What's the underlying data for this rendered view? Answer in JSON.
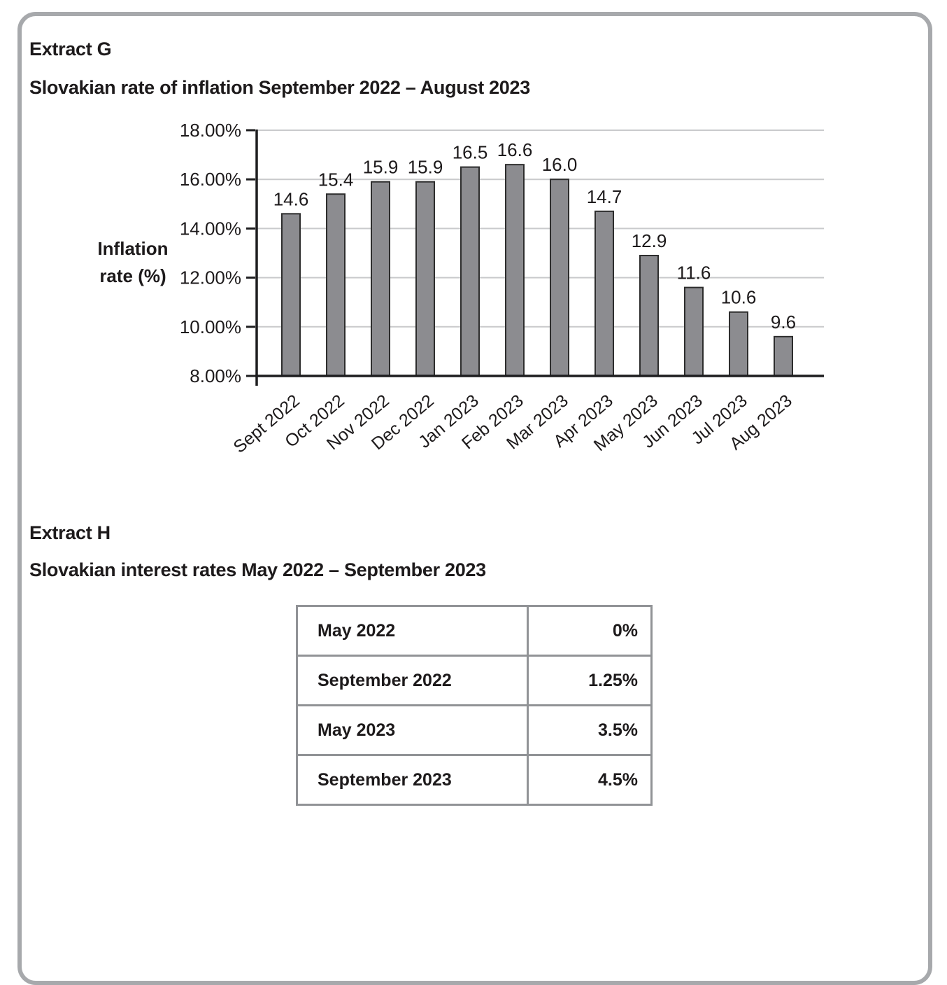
{
  "page": {
    "extract_g_heading": "Extract G",
    "extract_g_title": "Slovakian rate of inflation September 2022 – August 2023",
    "extract_h_heading": "Extract H",
    "extract_h_title": "Slovakian interest rates May 2022 – September 2023"
  },
  "chart_data": [
    {
      "type": "bar",
      "title": "Slovakian rate of inflation September 2022 – August 2023",
      "categories": [
        "Sept 2022",
        "Oct 2022",
        "Nov 2022",
        "Dec 2022",
        "Jan 2023",
        "Feb 2023",
        "Mar 2023",
        "Apr 2023",
        "May 2023",
        "Jun 2023",
        "Jul 2023",
        "Aug 2023"
      ],
      "values": [
        14.6,
        15.4,
        15.9,
        15.9,
        16.5,
        16.6,
        16.0,
        14.7,
        12.9,
        11.6,
        10.6,
        9.6
      ],
      "value_labels": [
        "14.6",
        "15.4",
        "15.9",
        "15.9",
        "16.5",
        "16.6",
        "16.0",
        "14.7",
        "12.9",
        "11.6",
        "10.6",
        "9.6"
      ],
      "xlabel": "",
      "ylabel_lines": [
        "Inflation",
        "rate (%)"
      ],
      "ylim": [
        8,
        18
      ],
      "y_ticks": [
        {
          "label": "18.00%",
          "value": 18
        },
        {
          "label": "16.00%",
          "value": 16
        },
        {
          "label": "14.00%",
          "value": 14
        },
        {
          "label": "12.00%",
          "value": 12
        },
        {
          "label": "10.00%",
          "value": 10
        },
        {
          "label": "8.00%",
          "value": 8
        }
      ],
      "grid": true,
      "legend": "none",
      "colors": {
        "bar_fill": "#8c8c90",
        "bar_stroke": "#2d2d2d",
        "gridline": "#c9cacc",
        "axis": "#1d1d1f",
        "text": "#1d1a1b"
      }
    },
    {
      "type": "table",
      "title": "Slovakian interest rates May 2022 – September 2023",
      "rows": [
        {
          "label": "May 2022",
          "value": "0%"
        },
        {
          "label": "September 2022",
          "value": "1.25%"
        },
        {
          "label": "May 2023",
          "value": "3.5%"
        },
        {
          "label": "September 2023",
          "value": "4.5%"
        }
      ],
      "border_color": "#919396"
    }
  ],
  "frame": {
    "border_color": "#a7a9ac"
  }
}
